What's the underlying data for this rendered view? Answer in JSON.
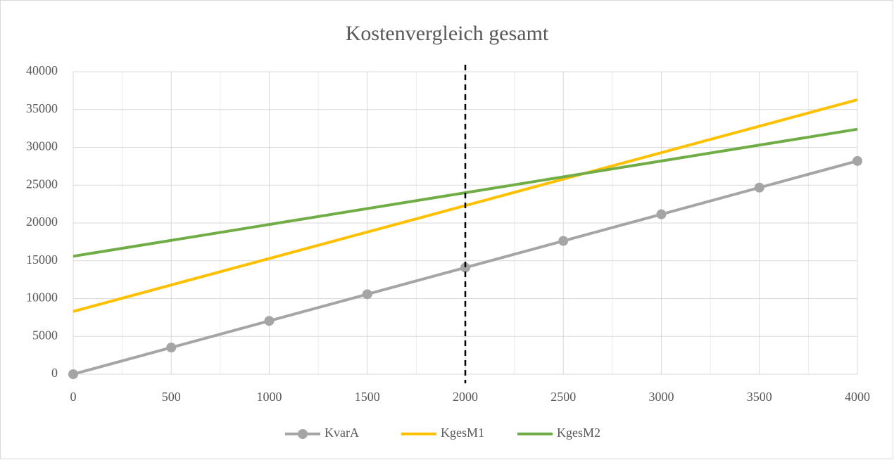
{
  "chart_data": {
    "type": "line",
    "title": "Kostenvergleich gesamt",
    "x": [
      0,
      500,
      1000,
      1500,
      2000,
      2500,
      3000,
      3500,
      4000
    ],
    "series": [
      {
        "name": "KvarA",
        "color": "#a5a5a5",
        "marker": true,
        "values": [
          0,
          3525,
          7050,
          10575,
          14100,
          17625,
          21150,
          24675,
          28200
        ]
      },
      {
        "name": "KgesM1",
        "color": "#ffc000",
        "marker": false,
        "values": [
          8300,
          11800,
          15300,
          18800,
          22300,
          25800,
          29300,
          32800,
          36300
        ]
      },
      {
        "name": "KgesM2",
        "color": "#70ad47",
        "marker": false,
        "values": [
          15600,
          17700,
          19800,
          21900,
          24000,
          26100,
          28200,
          30300,
          32400
        ]
      }
    ],
    "reference_x": 2000,
    "xlim": [
      0,
      4000
    ],
    "xticks": [
      0,
      500,
      1000,
      1500,
      2000,
      2500,
      3000,
      3500,
      4000
    ],
    "x_minor_grid": [
      250,
      750,
      1250,
      1750,
      2250,
      2750,
      3250,
      3750
    ],
    "ylim": [
      0,
      40000
    ],
    "yticks": [
      0,
      5000,
      10000,
      15000,
      20000,
      25000,
      30000,
      35000,
      40000
    ],
    "grid": true,
    "legend": "bottom"
  }
}
